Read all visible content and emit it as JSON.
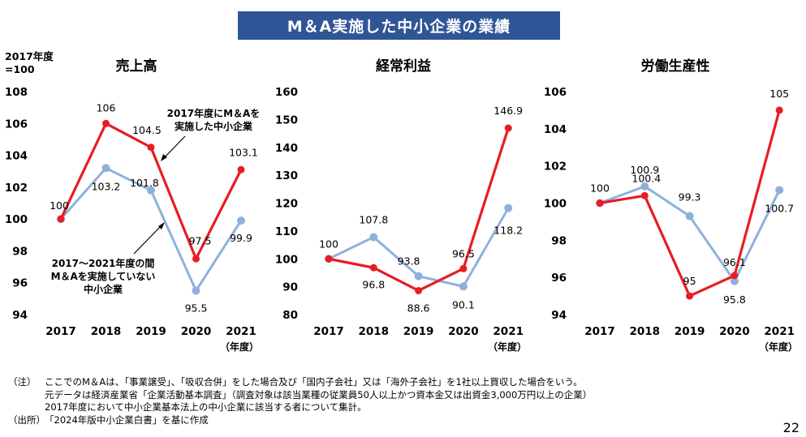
{
  "banner": "M＆A実施した中小企業の業績",
  "base_label": [
    "2017年度",
    "=100"
  ],
  "colors": {
    "implemented": "#e81c24",
    "not_implemented": "#8fb0dc",
    "banner": "#2f5597"
  },
  "chart_data": [
    {
      "type": "line",
      "title": "売上高",
      "categories": [
        "2017",
        "2018",
        "2019",
        "2020",
        "2021"
      ],
      "unit_label": "（年度）",
      "ylim": [
        94,
        108
      ],
      "yticks": [
        94,
        96,
        98,
        100,
        102,
        104,
        106,
        108
      ],
      "series": [
        {
          "key": "implemented",
          "values": [
            100,
            106,
            104.5,
            97.5,
            103.1
          ],
          "labels": [
            "100",
            "106",
            "104.5",
            "97.5",
            "103.1"
          ]
        },
        {
          "key": "not_implemented",
          "values": [
            100,
            103.2,
            101.8,
            95.5,
            99.9
          ],
          "labels": [
            "",
            "103.2",
            "101.8",
            "95.5",
            "99.9"
          ]
        }
      ],
      "annotations": [
        {
          "lines": [
            "2017年度にM＆Aを",
            "実施した中小企業"
          ]
        },
        {
          "lines": [
            "2017～2021年度の間",
            "M＆Aを実施していない",
            "中小企業"
          ]
        }
      ]
    },
    {
      "type": "line",
      "title": "経常利益",
      "categories": [
        "2017",
        "2018",
        "2019",
        "2020",
        "2021"
      ],
      "unit_label": "（年度）",
      "ylim": [
        80,
        160
      ],
      "yticks": [
        80,
        90,
        100,
        110,
        120,
        130,
        140,
        150,
        160
      ],
      "series": [
        {
          "key": "implemented",
          "values": [
            100,
            96.8,
            88.6,
            96.5,
            146.9
          ],
          "labels": [
            "100",
            "96.8",
            "88.6",
            "96.5",
            "146.9"
          ]
        },
        {
          "key": "not_implemented",
          "values": [
            100,
            107.8,
            93.8,
            90.1,
            118.2
          ],
          "labels": [
            "",
            "107.8",
            "93.8",
            "90.1",
            "118.2"
          ]
        }
      ]
    },
    {
      "type": "line",
      "title": "労働生産性",
      "categories": [
        "2017",
        "2018",
        "2019",
        "2020",
        "2021"
      ],
      "unit_label": "（年度）",
      "ylim": [
        94,
        106
      ],
      "yticks": [
        94,
        96,
        98,
        100,
        102,
        104,
        106
      ],
      "series": [
        {
          "key": "implemented",
          "values": [
            100,
            100.4,
            95,
            96.1,
            105
          ],
          "labels": [
            "100",
            "100.4",
            "95",
            "96.1",
            "105"
          ]
        },
        {
          "key": "not_implemented",
          "values": [
            100,
            100.9,
            99.3,
            95.8,
            100.7
          ],
          "labels": [
            "",
            "100.9",
            "99.3",
            "95.8",
            "100.7"
          ]
        }
      ]
    }
  ],
  "notes": {
    "note_tag": "（注）",
    "note_lines": [
      "ここでのM＆Aは、「事業譲受」、「吸収合併」をした場合及び「国内子会社」又は「海外子会社」を1社以上買収した場合をいう。",
      "元データは経済産業省「企業活動基本調査」（調査対象は該当業種の従業員50人以上かつ資本金又は出資金3,000万円以上の企業）",
      "2017年度において中小企業基本法上の中小企業に該当する者について集計。"
    ],
    "source_tag": "（出所）",
    "source_text": "「2024年版中小企業白書」を基に作成"
  },
  "page_number": "22"
}
